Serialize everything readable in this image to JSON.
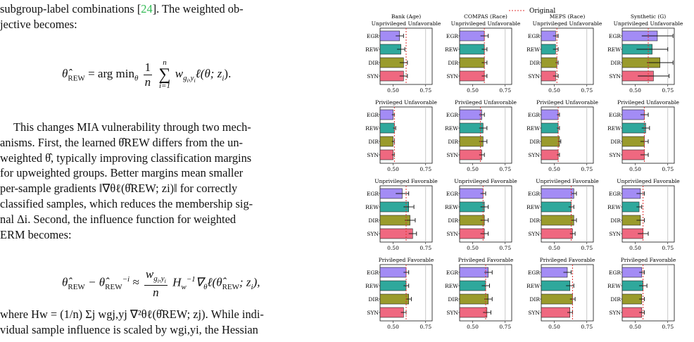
{
  "text": {
    "line1a": "subgroup-label combinations [",
    "cite": "24",
    "line1b": "]. The weighted ob-",
    "line2": "jective becomes:",
    "eq1": {
      "lhs": "θ̂",
      "lhs_sub": "REW",
      "eq": " = arg min",
      "argmin_sub": "θ",
      "frac_num": "1",
      "frac_den": "n",
      "sum_top": "n",
      "sum_bot": "i=1",
      "rhs": "w",
      "rhs_sub": "g",
      "rhs_rest": "ℓ(θ; z",
      "rhs_end": ")."
    },
    "para2": [
      "This changes MIA vulnerability through two mech-",
      "anisms. First, the learned θ̂REW differs from the un-",
      "weighted θ̂, typically improving classification margins",
      "for upweighted groups. Better margins mean smaller",
      "per-sample gradients ‖∇θℓ(θ̂REW; zi)‖ for correctly",
      "classified samples, which reduces the membership sig-",
      "nal Δi. Second, the influence function for weighted",
      "ERM becomes:"
    ],
    "eq2": "θ̂REW − θ̂REW⁻ⁱ ≈ (wgi,yi / n) Hw⁻¹ ∇θℓ(θ̂REW; zi),",
    "para3": [
      "where Hw = (1/n) Σj wgj,yj ∇²θℓ(θ̂REW; zj). While indi-",
      "vidual sample influence is scaled by wgi,yi, the Hessian"
    ]
  },
  "chart_data": {
    "type": "bar",
    "legend": {
      "label": "Original",
      "line_color": "#e03030",
      "placement": "top-center"
    },
    "columns": [
      "Bank (Age)",
      "COMPAS (Race)",
      "MEPS (Race)",
      "Synthetic (G)"
    ],
    "rows": [
      "Unprivileged Unfavorable",
      "Privileged Unfavorable",
      "Unprivileged Favorable",
      "Privileged Favorable"
    ],
    "categories": [
      "EGR",
      "REW",
      "DIR",
      "SYN"
    ],
    "colors": {
      "EGR": "#a38cf5",
      "REW": "#2fa89c",
      "DIR": "#9a9b2c",
      "SYN": "#ef6880"
    },
    "xticks": [
      0.5,
      0.75
    ],
    "xlim": [
      0.4,
      0.8
    ],
    "grid": "vertical at 0.75",
    "panels": [
      {
        "column": "Bank (Age)",
        "row": "Unprivileged Unfavorable",
        "original": 0.6,
        "values": [
          0.55,
          0.56,
          0.58,
          0.58
        ],
        "errors": [
          0.03,
          0.03,
          0.03,
          0.03
        ]
      },
      {
        "column": "COMPAS (Race)",
        "row": "Unprivileged Unfavorable",
        "original": 0.59,
        "values": [
          0.59,
          0.59,
          0.59,
          0.59
        ],
        "errors": [
          0.03,
          0.02,
          0.02,
          0.02
        ]
      },
      {
        "column": "MEPS (Race)",
        "row": "Unprivileged Unfavorable",
        "original": 0.52,
        "values": [
          0.51,
          0.51,
          0.52,
          0.51
        ],
        "errors": [
          0.02,
          0.02,
          0.01,
          0.02
        ]
      },
      {
        "column": "Synthetic (G)",
        "row": "Unprivileged Unfavorable",
        "original": 0.6,
        "values": [
          0.67,
          0.63,
          0.69,
          0.64
        ],
        "errors": [
          0.12,
          0.12,
          0.1,
          0.12
        ]
      },
      {
        "column": "Bank (Age)",
        "row": "Privileged Unfavorable",
        "original": 0.51,
        "values": [
          0.5,
          0.51,
          0.5,
          0.5
        ],
        "errors": [
          0.01,
          0.01,
          0.01,
          0.01
        ]
      },
      {
        "column": "COMPAS (Race)",
        "row": "Privileged Unfavorable",
        "original": 0.56,
        "values": [
          0.57,
          0.58,
          0.58,
          0.57
        ],
        "errors": [
          0.02,
          0.03,
          0.03,
          0.02
        ]
      },
      {
        "column": "MEPS (Race)",
        "row": "Privileged Unfavorable",
        "original": 0.53,
        "values": [
          0.53,
          0.53,
          0.54,
          0.53
        ],
        "errors": [
          0.01,
          0.01,
          0.01,
          0.01
        ]
      },
      {
        "column": "Synthetic (G)",
        "row": "Privileged Unfavorable",
        "original": 0.57,
        "values": [
          0.57,
          0.58,
          0.57,
          0.57
        ],
        "errors": [
          0.03,
          0.03,
          0.03,
          0.03
        ]
      },
      {
        "column": "Bank (Age)",
        "row": "Unprivileged Favorable",
        "original": 0.6,
        "values": [
          0.57,
          0.62,
          0.63,
          0.65
        ],
        "errors": [
          0.05,
          0.04,
          0.04,
          0.03
        ]
      },
      {
        "column": "COMPAS (Race)",
        "row": "Unprivileged Favorable",
        "original": 0.58,
        "values": [
          0.58,
          0.59,
          0.59,
          0.59
        ],
        "errors": [
          0.02,
          0.03,
          0.03,
          0.03
        ]
      },
      {
        "column": "MEPS (Race)",
        "row": "Unprivileged Favorable",
        "original": 0.63,
        "values": [
          0.65,
          0.63,
          0.65,
          0.64
        ],
        "errors": [
          0.02,
          0.02,
          0.02,
          0.02
        ]
      },
      {
        "column": "Synthetic (G)",
        "row": "Unprivileged Favorable",
        "original": 0.56,
        "values": [
          0.54,
          0.53,
          0.54,
          0.56
        ],
        "errors": [
          0.03,
          0.02,
          0.03,
          0.04
        ]
      },
      {
        "column": "Bank (Age)",
        "row": "Privileged Favorable",
        "original": 0.6,
        "values": [
          0.6,
          0.6,
          0.62,
          0.58
        ],
        "errors": [
          0.02,
          0.02,
          0.02,
          0.02
        ]
      },
      {
        "column": "COMPAS (Race)",
        "row": "Privileged Favorable",
        "original": 0.6,
        "values": [
          0.62,
          0.6,
          0.62,
          0.61
        ],
        "errors": [
          0.03,
          0.03,
          0.03,
          0.03
        ]
      },
      {
        "column": "MEPS (Race)",
        "row": "Privileged Favorable",
        "original": 0.64,
        "values": [
          0.6,
          0.62,
          0.64,
          0.62
        ],
        "errors": [
          0.03,
          0.03,
          0.02,
          0.02
        ]
      },
      {
        "column": "Synthetic (G)",
        "row": "Privileged Favorable",
        "original": 0.56,
        "values": [
          0.55,
          0.56,
          0.55,
          0.55
        ],
        "errors": [
          0.02,
          0.03,
          0.02,
          0.02
        ]
      }
    ]
  }
}
